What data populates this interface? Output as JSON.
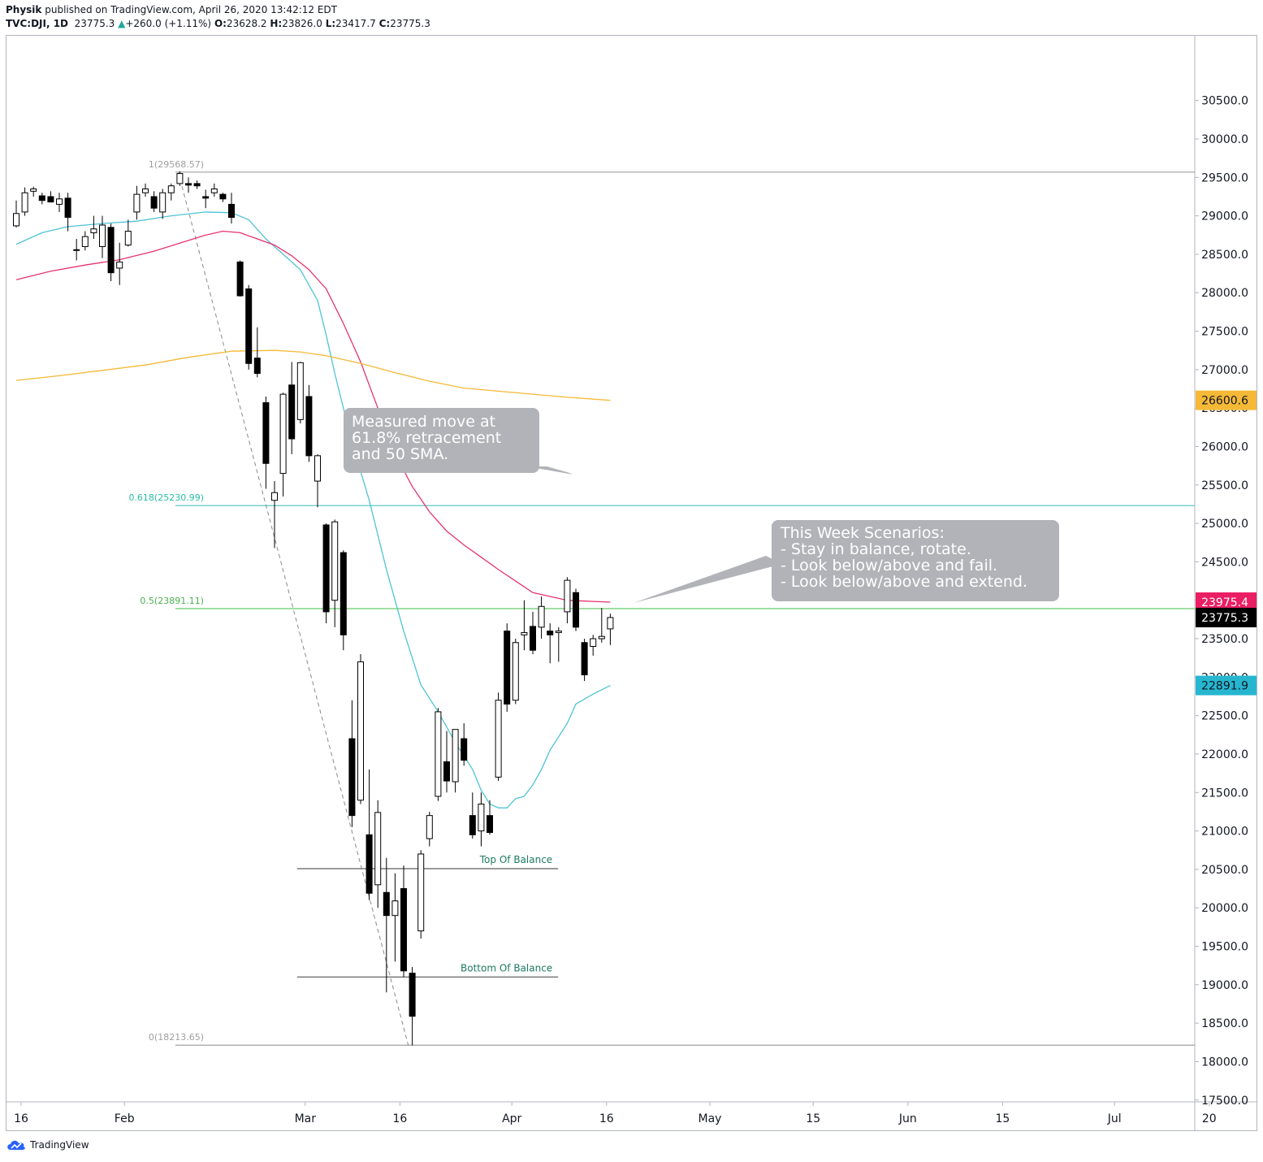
{
  "header": {
    "author": "Physik",
    "published": "published on TradingView.com, April 26, 2020 13:42:12 EDT",
    "symbol": "TVC:DJI, 1D",
    "last": "23775.3",
    "change_arrow": "▲",
    "change": "+260.0 (+1.11%)",
    "o_label": "O:",
    "o": "23628.2",
    "h_label": "H:",
    "h": "23826.0",
    "l_label": "L:",
    "l": "23417.7",
    "c_label": "C:",
    "c": "23775.3"
  },
  "footer": {
    "logo_text": "TradingView",
    "icon": "tradingview-cloud-icon"
  },
  "annotations": {
    "measured_move": [
      "Measured move at",
      "61.8% retracement",
      "and 50 SMA."
    ],
    "scenarios": [
      "This Week Scenarios:",
      "- Stay in balance, rotate.",
      "- Look below/above and fail.",
      "- Look below/above and extend."
    ],
    "top_of_balance": "Top Of Balance",
    "bottom_of_balance": "Bottom Of Balance"
  },
  "chart_data": {
    "type": "candlestick",
    "yaxis": {
      "ticks": [
        17500,
        18000,
        18500,
        19000,
        19500,
        20000,
        20500,
        21000,
        21500,
        22000,
        22500,
        23000,
        23500,
        24000,
        24500,
        25000,
        25500,
        26000,
        26500,
        27000,
        27500,
        28000,
        28500,
        29000,
        29500,
        30000,
        30500
      ],
      "tick_labels": [
        "17500.0",
        "18000.0",
        "18500.0",
        "19000.0",
        "19500.0",
        "20000.0",
        "20500.0",
        "21000.0",
        "21500.0",
        "22000.0",
        "22500.0",
        "23000.0",
        "23500.0",
        "24000.0",
        "24500.0",
        "25000.0",
        "25500.0",
        "26000.0",
        "26500.0",
        "27000.0",
        "27500.0",
        "28000.0",
        "28500.0",
        "29000.0",
        "29500.0",
        "30000.0",
        "30500.0"
      ],
      "range": [
        17100,
        30900
      ]
    },
    "xaxis": {
      "tick_labels": [
        "16",
        "Feb",
        "Mar",
        "16",
        "Apr",
        "16",
        "May",
        "15",
        "Jun",
        "15",
        "Jul",
        "20"
      ],
      "tick_bar_index": [
        0,
        12,
        33,
        44,
        57,
        68,
        80,
        92,
        103,
        114,
        127,
        138
      ]
    },
    "price_labels": [
      {
        "value": 26600.6,
        "text": "26600.6",
        "color": "#f5b937",
        "text_color": "#131722"
      },
      {
        "value": 23975.4,
        "text": "23975.4",
        "color": "#e91e63",
        "text_color": "#ffffff"
      },
      {
        "value": 23775.3,
        "text": "23775.3",
        "color": "#000000",
        "text_color": "#ffffff"
      },
      {
        "value": 22891.9,
        "text": "22891.9",
        "color": "#26b6d0",
        "text_color": "#131722"
      }
    ],
    "fib_levels": [
      {
        "label": "1(29568.57)",
        "value": 29568.57,
        "color": "#9e9e9e",
        "line_color": "#a0a0a0"
      },
      {
        "label": "0.618(25230.99)",
        "value": 25230.99,
        "color": "#2bbfa4",
        "line_color": "#5bc9c9"
      },
      {
        "label": "0.5(23891.11)",
        "value": 23891.11,
        "color": "#4caf50",
        "line_color": "#66cc66"
      },
      {
        "label": "0(18213.65)",
        "value": 18213.65,
        "color": "#9e9e9e",
        "line_color": "#a0a0a0"
      }
    ],
    "balance_levels": [
      {
        "name": "Top Of Balance",
        "value": 20510,
        "from_bar": 33,
        "to_bar": 62
      },
      {
        "name": "Bottom Of Balance",
        "value": 19100,
        "from_bar": 33,
        "to_bar": 62
      }
    ],
    "candles": [
      {
        "i": 0,
        "o": 28870,
        "h": 29200,
        "l": 28850,
        "c": 29030
      },
      {
        "i": 1,
        "o": 29050,
        "h": 29370,
        "l": 29000,
        "c": 29300
      },
      {
        "i": 2,
        "o": 29320,
        "h": 29380,
        "l": 29250,
        "c": 29350
      },
      {
        "i": 3,
        "o": 29260,
        "h": 29300,
        "l": 29150,
        "c": 29200
      },
      {
        "i": 4,
        "o": 29250,
        "h": 29320,
        "l": 29180,
        "c": 29180
      },
      {
        "i": 5,
        "o": 29150,
        "h": 29300,
        "l": 29050,
        "c": 29220
      },
      {
        "i": 6,
        "o": 29230,
        "h": 29300,
        "l": 28800,
        "c": 28980
      },
      {
        "i": 7,
        "o": 28560,
        "h": 28700,
        "l": 28420,
        "c": 28550
      },
      {
        "i": 8,
        "o": 28600,
        "h": 28800,
        "l": 28550,
        "c": 28730
      },
      {
        "i": 9,
        "o": 28780,
        "h": 29000,
        "l": 28700,
        "c": 28830
      },
      {
        "i": 10,
        "o": 28600,
        "h": 29000,
        "l": 28450,
        "c": 28880
      },
      {
        "i": 11,
        "o": 28850,
        "h": 28900,
        "l": 28150,
        "c": 28260
      },
      {
        "i": 12,
        "o": 28320,
        "h": 28650,
        "l": 28100,
        "c": 28400
      },
      {
        "i": 13,
        "o": 28620,
        "h": 28950,
        "l": 28600,
        "c": 28800
      },
      {
        "i": 14,
        "o": 29050,
        "h": 29390,
        "l": 28950,
        "c": 29280
      },
      {
        "i": 15,
        "o": 29300,
        "h": 29420,
        "l": 29250,
        "c": 29350
      },
      {
        "i": 16,
        "o": 29250,
        "h": 29320,
        "l": 29050,
        "c": 29100
      },
      {
        "i": 17,
        "o": 29050,
        "h": 29350,
        "l": 28960,
        "c": 29300
      },
      {
        "i": 18,
        "o": 29300,
        "h": 29420,
        "l": 29200,
        "c": 29390
      },
      {
        "i": 19,
        "o": 29420,
        "h": 29580,
        "l": 29390,
        "c": 29550
      },
      {
        "i": 20,
        "o": 29420,
        "h": 29500,
        "l": 29300,
        "c": 29400
      },
      {
        "i": 21,
        "o": 29420,
        "h": 29460,
        "l": 29350,
        "c": 29390
      },
      {
        "i": 22,
        "o": 29250,
        "h": 29340,
        "l": 29100,
        "c": 29230
      },
      {
        "i": 23,
        "o": 29300,
        "h": 29420,
        "l": 29250,
        "c": 29350
      },
      {
        "i": 24,
        "o": 29280,
        "h": 29300,
        "l": 29180,
        "c": 29220
      },
      {
        "i": 25,
        "o": 29150,
        "h": 29300,
        "l": 28900,
        "c": 28980
      },
      {
        "i": 26,
        "o": 28400,
        "h": 28420,
        "l": 27950,
        "c": 27960
      },
      {
        "i": 27,
        "o": 28050,
        "h": 28100,
        "l": 27000,
        "c": 27080
      },
      {
        "i": 28,
        "o": 27150,
        "h": 27550,
        "l": 26900,
        "c": 26950
      },
      {
        "i": 29,
        "o": 26570,
        "h": 26650,
        "l": 25450,
        "c": 25780
      },
      {
        "i": 30,
        "o": 25300,
        "h": 25550,
        "l": 24680,
        "c": 25400
      },
      {
        "i": 31,
        "o": 25650,
        "h": 26700,
        "l": 25350,
        "c": 26680
      },
      {
        "i": 32,
        "o": 26800,
        "h": 27100,
        "l": 25900,
        "c": 26100
      },
      {
        "i": 33,
        "o": 26350,
        "h": 27100,
        "l": 26300,
        "c": 27090
      },
      {
        "i": 34,
        "o": 26650,
        "h": 26800,
        "l": 25800,
        "c": 25880
      },
      {
        "i": 35,
        "o": 25550,
        "h": 25900,
        "l": 25210,
        "c": 25880
      },
      {
        "i": 36,
        "o": 24980,
        "h": 25000,
        "l": 23700,
        "c": 23850
      },
      {
        "i": 37,
        "o": 24000,
        "h": 25050,
        "l": 23650,
        "c": 25020
      },
      {
        "i": 38,
        "o": 24620,
        "h": 24650,
        "l": 23350,
        "c": 23550
      },
      {
        "i": 39,
        "o": 22200,
        "h": 22700,
        "l": 21050,
        "c": 21200
      },
      {
        "i": 40,
        "o": 21400,
        "h": 23300,
        "l": 21350,
        "c": 23200
      },
      {
        "i": 41,
        "o": 20950,
        "h": 21800,
        "l": 20100,
        "c": 20190
      },
      {
        "i": 42,
        "o": 20300,
        "h": 21400,
        "l": 20000,
        "c": 21240
      },
      {
        "i": 43,
        "o": 20200,
        "h": 20650,
        "l": 18900,
        "c": 19900
      },
      {
        "i": 44,
        "o": 19900,
        "h": 20450,
        "l": 19300,
        "c": 20090
      },
      {
        "i": 45,
        "o": 20250,
        "h": 20550,
        "l": 19100,
        "c": 19180
      },
      {
        "i": 46,
        "o": 19150,
        "h": 19230,
        "l": 18210,
        "c": 18590
      },
      {
        "i": 47,
        "o": 19700,
        "h": 20750,
        "l": 19600,
        "c": 20700
      },
      {
        "i": 48,
        "o": 20900,
        "h": 21250,
        "l": 20800,
        "c": 21200
      },
      {
        "i": 49,
        "o": 21450,
        "h": 22600,
        "l": 21390,
        "c": 22550
      },
      {
        "i": 50,
        "o": 21900,
        "h": 22300,
        "l": 21500,
        "c": 21650
      },
      {
        "i": 51,
        "o": 21640,
        "h": 22200,
        "l": 21500,
        "c": 22320
      },
      {
        "i": 52,
        "o": 22200,
        "h": 22400,
        "l": 21850,
        "c": 21920
      },
      {
        "i": 53,
        "o": 21200,
        "h": 21500,
        "l": 20900,
        "c": 20950
      },
      {
        "i": 54,
        "o": 21000,
        "h": 21500,
        "l": 20800,
        "c": 21350
      },
      {
        "i": 55,
        "o": 21200,
        "h": 21400,
        "l": 20950,
        "c": 20980
      },
      {
        "i": 56,
        "o": 21700,
        "h": 22800,
        "l": 21650,
        "c": 22700
      },
      {
        "i": 57,
        "o": 23600,
        "h": 23700,
        "l": 22550,
        "c": 22650
      },
      {
        "i": 58,
        "o": 22700,
        "h": 23500,
        "l": 22650,
        "c": 23450
      },
      {
        "i": 59,
        "o": 23550,
        "h": 24000,
        "l": 23350,
        "c": 23580
      },
      {
        "i": 60,
        "o": 23660,
        "h": 23850,
        "l": 23300,
        "c": 23350
      },
      {
        "i": 61,
        "o": 23650,
        "h": 24050,
        "l": 23500,
        "c": 23920
      },
      {
        "i": 62,
        "o": 23600,
        "h": 23700,
        "l": 23180,
        "c": 23550
      },
      {
        "i": 63,
        "o": 23580,
        "h": 23650,
        "l": 23200,
        "c": 23600
      },
      {
        "i": 64,
        "o": 23850,
        "h": 24300,
        "l": 23700,
        "c": 24260
      },
      {
        "i": 65,
        "o": 24100,
        "h": 24150,
        "l": 23600,
        "c": 23650
      },
      {
        "i": 66,
        "o": 23450,
        "h": 23500,
        "l": 22950,
        "c": 23030
      },
      {
        "i": 67,
        "o": 23400,
        "h": 23550,
        "l": 23280,
        "c": 23500
      },
      {
        "i": 68,
        "o": 23500,
        "h": 23900,
        "l": 23450,
        "c": 23530
      },
      {
        "i": 69,
        "o": 23628.2,
        "h": 23826.0,
        "l": 23417.7,
        "c": 23775.3
      }
    ],
    "moving_averages": [
      {
        "name": "20",
        "color": "#4fc3d6",
        "points": [
          [
            0,
            28630
          ],
          [
            3,
            28780
          ],
          [
            6,
            28860
          ],
          [
            10,
            28900
          ],
          [
            14,
            28930
          ],
          [
            18,
            29000
          ],
          [
            22,
            29050
          ],
          [
            25,
            29040
          ],
          [
            27,
            28950
          ],
          [
            29,
            28700
          ],
          [
            31,
            28500
          ],
          [
            33,
            28300
          ],
          [
            35,
            27900
          ],
          [
            36,
            27450
          ],
          [
            37,
            26950
          ],
          [
            39,
            26050
          ],
          [
            41,
            25300
          ],
          [
            43,
            24400
          ],
          [
            45,
            23600
          ],
          [
            47,
            22900
          ],
          [
            49,
            22550
          ],
          [
            51,
            22150
          ],
          [
            53,
            21800
          ],
          [
            54,
            21530
          ],
          [
            55,
            21350
          ],
          [
            56,
            21300
          ],
          [
            57,
            21300
          ],
          [
            58,
            21420
          ],
          [
            59,
            21450
          ],
          [
            60,
            21600
          ],
          [
            61,
            21800
          ],
          [
            62,
            22050
          ],
          [
            64,
            22400
          ],
          [
            65,
            22650
          ],
          [
            67,
            22780
          ],
          [
            69,
            22891.9
          ]
        ]
      },
      {
        "name": "50",
        "color": "#e5336f",
        "points": [
          [
            0,
            28170
          ],
          [
            4,
            28280
          ],
          [
            8,
            28360
          ],
          [
            12,
            28430
          ],
          [
            16,
            28540
          ],
          [
            20,
            28680
          ],
          [
            22,
            28750
          ],
          [
            24,
            28800
          ],
          [
            26,
            28780
          ],
          [
            28,
            28700
          ],
          [
            30,
            28620
          ],
          [
            32,
            28480
          ],
          [
            34,
            28300
          ],
          [
            36,
            28050
          ],
          [
            38,
            27600
          ],
          [
            40,
            27100
          ],
          [
            42,
            26500
          ],
          [
            44,
            25900
          ],
          [
            46,
            25480
          ],
          [
            48,
            25150
          ],
          [
            50,
            24900
          ],
          [
            52,
            24720
          ],
          [
            54,
            24560
          ],
          [
            56,
            24400
          ],
          [
            58,
            24250
          ],
          [
            60,
            24100
          ],
          [
            62,
            24050
          ],
          [
            64,
            24000
          ],
          [
            66,
            23990
          ],
          [
            67,
            23985
          ],
          [
            69,
            23975.4
          ]
        ]
      },
      {
        "name": "200",
        "color": "#f5b937",
        "points": [
          [
            0,
            26860
          ],
          [
            5,
            26920
          ],
          [
            10,
            26990
          ],
          [
            15,
            27060
          ],
          [
            20,
            27160
          ],
          [
            25,
            27240
          ],
          [
            30,
            27250
          ],
          [
            33,
            27230
          ],
          [
            36,
            27180
          ],
          [
            40,
            27080
          ],
          [
            44,
            26960
          ],
          [
            48,
            26850
          ],
          [
            52,
            26760
          ],
          [
            56,
            26720
          ],
          [
            60,
            26680
          ],
          [
            64,
            26640
          ],
          [
            69,
            26600.6
          ]
        ]
      }
    ]
  }
}
